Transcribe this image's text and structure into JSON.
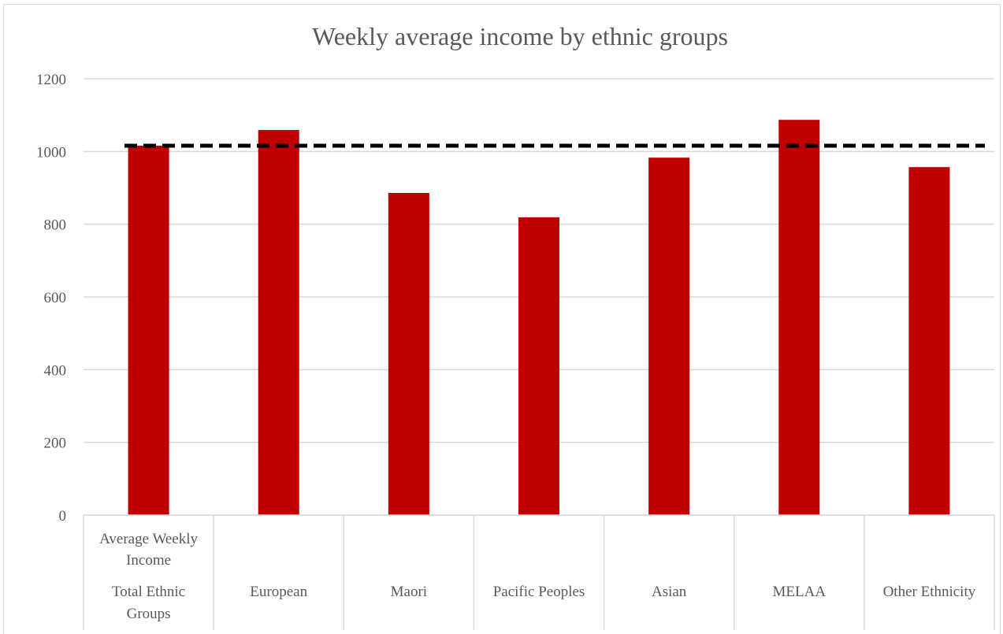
{
  "chart_data": {
    "type": "bar",
    "title": "Weekly average income by ethnic groups",
    "header_row_label": "Average Weekly Income",
    "categories": [
      "Total Ethnic Groups",
      "European",
      "Maori",
      "Pacific Peoples",
      "Asian",
      "MELAA",
      "Other Ethnicity"
    ],
    "values": [
      1016,
      1059,
      886,
      819,
      983,
      1087,
      957
    ],
    "reference_line": {
      "value": 1016,
      "style": "dashed",
      "color": "#000000"
    },
    "ylim": [
      0,
      1200
    ],
    "yticks": [
      "0",
      "200",
      "400",
      "600",
      "800",
      "1000",
      "1200"
    ],
    "grid": true,
    "legend": "none",
    "bar_color": "#c00000"
  }
}
